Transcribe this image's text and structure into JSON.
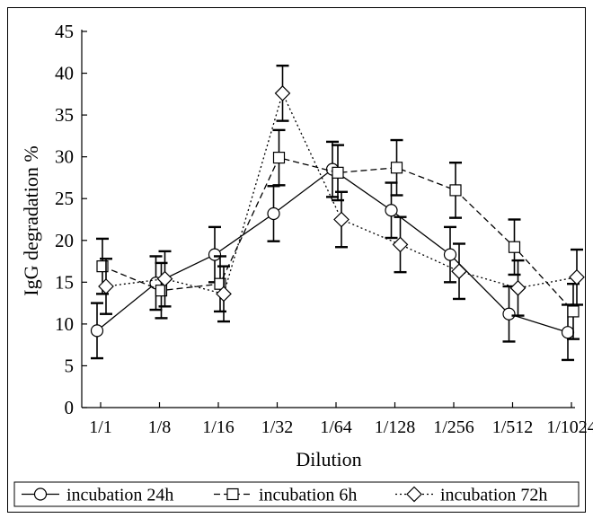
{
  "chart_data": {
    "type": "line",
    "title": "",
    "xlabel": "Dilution",
    "ylabel": "IgG degradation %",
    "categories": [
      "1/1",
      "1/8",
      "1/16",
      "1/32",
      "1/64",
      "1/128",
      "1/256",
      "1/512",
      "1/1024"
    ],
    "ylim": [
      0,
      45
    ],
    "yticks": [
      0,
      5,
      10,
      15,
      20,
      25,
      30,
      35,
      40,
      45
    ],
    "grid": false,
    "legend_position": "bottom",
    "series": [
      {
        "name": "incubation 24h",
        "marker": "circle",
        "line_style": "solid",
        "values": [
          9.2,
          14.9,
          18.3,
          23.2,
          28.5,
          23.6,
          18.3,
          11.2,
          9.0
        ],
        "errors": [
          3.3,
          3.2,
          3.3,
          3.3,
          3.3,
          3.3,
          3.3,
          3.3,
          3.3
        ]
      },
      {
        "name": "incubation 6h",
        "marker": "square",
        "line_style": "dashed",
        "values": [
          16.9,
          14.0,
          14.8,
          29.9,
          28.1,
          28.7,
          26.0,
          19.2,
          11.5
        ],
        "errors": [
          3.3,
          3.3,
          3.3,
          3.3,
          3.3,
          3.3,
          3.3,
          3.3,
          3.3
        ]
      },
      {
        "name": "incubation 72h",
        "marker": "diamond",
        "line_style": "dotted",
        "values": [
          14.5,
          15.4,
          13.6,
          37.6,
          22.5,
          19.5,
          16.3,
          14.3,
          15.6
        ],
        "errors": [
          3.3,
          3.3,
          3.3,
          3.3,
          3.3,
          3.3,
          3.3,
          3.3,
          3.3
        ]
      }
    ]
  }
}
